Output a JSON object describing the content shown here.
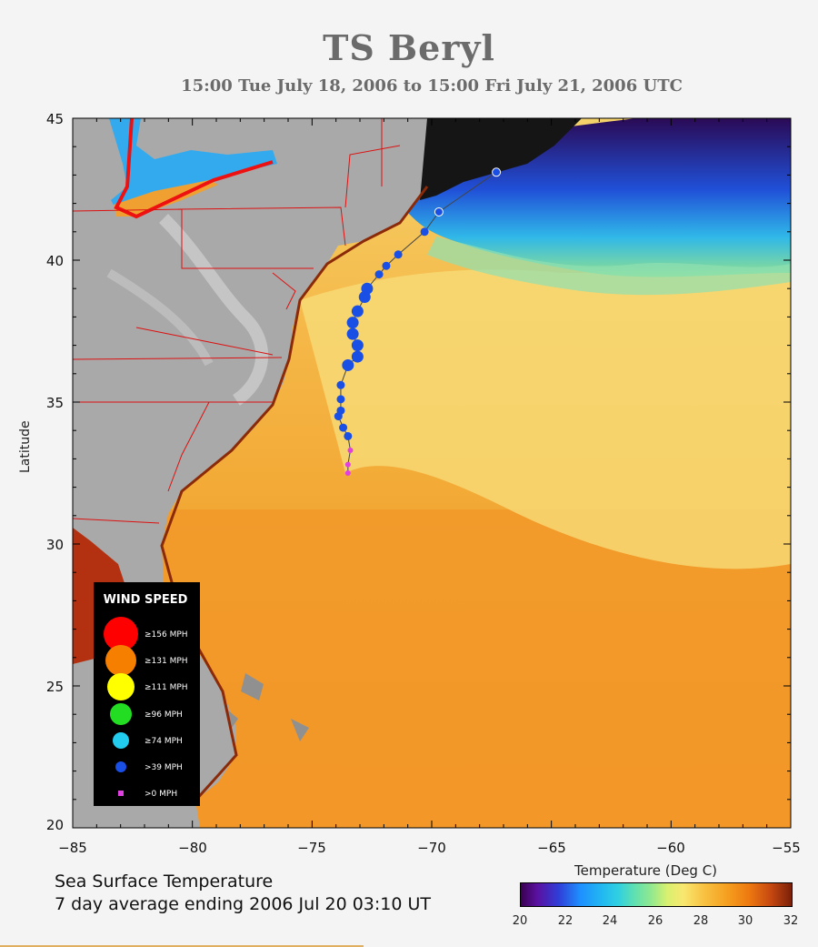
{
  "title": "TS Beryl",
  "subtitle": "15:00 Tue July 18, 2006 to 15:00 Fri July 21, 2006  UTC",
  "axes": {
    "ylabel": "Latitude",
    "x_ticks": [
      "−85",
      "−80",
      "−75",
      "−70",
      "−65",
      "−60",
      "−55"
    ],
    "y_ticks": [
      "45",
      "40",
      "35",
      "30",
      "25",
      "20"
    ],
    "x_range": [
      -85,
      -55
    ],
    "y_range": [
      20,
      45
    ]
  },
  "info": {
    "line1": "Sea Surface Temperature",
    "line2": "7 day average ending 2006 Jul 20 03:10 UT"
  },
  "colorbar": {
    "title": "Temperature (Deg C)",
    "ticks": [
      "20",
      "22",
      "24",
      "26",
      "28",
      "30",
      "32"
    ]
  },
  "legend": {
    "title": "WIND SPEED",
    "entries": [
      {
        "label": "≥156 MPH",
        "color": "#ff0000"
      },
      {
        "label": "≥131 MPH",
        "color": "#f77f00"
      },
      {
        "label": "≥111 MPH",
        "color": "#ffff00"
      },
      {
        "label": "≥96 MPH",
        "color": "#22dd22"
      },
      {
        "label": "≥74 MPH",
        "color": "#22ccee"
      },
      {
        "label": ">39 MPH",
        "color": "#1a4fe6"
      },
      {
        "label": ">0 MPH",
        "color": "#e040e0"
      }
    ]
  },
  "chart_data": {
    "type": "scatter",
    "series": [
      {
        "category": ">0 MPH",
        "color": "#e040e0",
        "points": [
          [
            -73.5,
            32.5
          ],
          [
            -73.5,
            32.8
          ],
          [
            -73.4,
            33.3
          ]
        ]
      },
      {
        "category": ">39 MPH",
        "color": "#1a4fe6",
        "points": [
          [
            -73.5,
            33.8
          ],
          [
            -73.7,
            34.1
          ],
          [
            -73.9,
            34.5
          ],
          [
            -73.8,
            34.7
          ],
          [
            -73.8,
            35.1
          ],
          [
            -73.8,
            35.6
          ],
          [
            -73.5,
            36.3
          ],
          [
            -73.1,
            36.6
          ],
          [
            -73.1,
            37.0
          ],
          [
            -73.3,
            37.4
          ],
          [
            -73.3,
            37.8
          ],
          [
            -73.1,
            38.2
          ],
          [
            -72.8,
            38.7
          ],
          [
            -72.7,
            39.0
          ],
          [
            -72.2,
            39.5
          ],
          [
            -71.9,
            39.8
          ],
          [
            -71.4,
            40.2
          ],
          [
            -70.3,
            41.0
          ],
          [
            -69.7,
            41.7
          ],
          [
            -67.3,
            43.1
          ]
        ]
      }
    ],
    "xlim": [
      -85,
      -55
    ],
    "ylim": [
      20,
      45
    ],
    "colorbar_range": [
      20,
      32
    ],
    "colorbar_unit": "Deg C"
  }
}
